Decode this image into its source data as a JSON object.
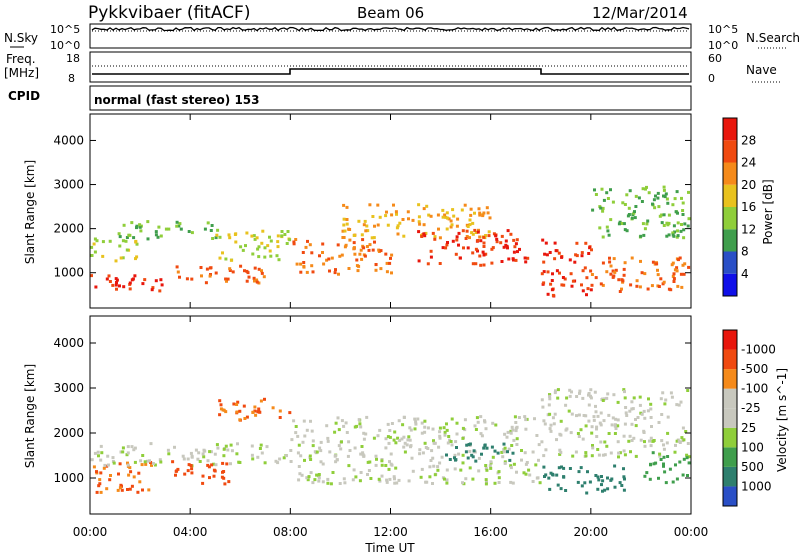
{
  "header": {
    "station": "Pykkvibaer (fitACF)",
    "beam": "Beam 06",
    "date": "12/Mar/2014"
  },
  "noise_panel": {
    "left_label": "N.Sky",
    "right_label": "N.Search",
    "left_ticks": [
      "10^5",
      "10^0"
    ],
    "right_ticks": [
      "10^5",
      "10^0"
    ]
  },
  "freq_panel": {
    "left_label_line1": "Freq.",
    "left_label_line2": "[MHz]",
    "left_ticks": [
      "18",
      "8"
    ],
    "right_label": "Nave",
    "right_ticks": [
      "60",
      "0"
    ]
  },
  "cpid": {
    "label": "CPID",
    "text": "normal (fast stereo) 153"
  },
  "x_axis": {
    "label": "Time UT",
    "ticks": [
      "00:00",
      "04:00",
      "08:00",
      "12:00",
      "16:00",
      "20:00",
      "00:00"
    ]
  },
  "colors": {
    "red": "#e8160c",
    "orange_red": "#f04a10",
    "orange": "#f58a1a",
    "yellow": "#e8c21e",
    "light_green": "#8fce3a",
    "green": "#3f9e4c",
    "teal": "#2e7f6e",
    "blue": "#2a4fc6",
    "grey": "#c8c8be"
  },
  "chart_data": [
    {
      "type": "heatmap",
      "name": "power",
      "ylabel": "Slant Range [km]",
      "xlabel": "",
      "yticks": [
        "1000",
        "2000",
        "3000",
        "4000"
      ],
      "ylim": [
        200,
        4600
      ],
      "xlim": [
        0,
        24
      ],
      "colorbar": {
        "label": "Power [dB]",
        "levels": [
          "4",
          "8",
          "12",
          "16",
          "20",
          "24",
          "28"
        ],
        "colors": [
          "#1010e8",
          "#2a4fc6",
          "#3f9e4c",
          "#8fce3a",
          "#e8c21e",
          "#f58a1a",
          "#f04a10",
          "#e8160c"
        ]
      },
      "scatter_bands": [
        {
          "t0": 0.0,
          "t1": 3.0,
          "r0": 600,
          "r1": 1000,
          "level": 28
        },
        {
          "t0": 0.0,
          "t1": 2.0,
          "r0": 1300,
          "r1": 1800,
          "level": 16
        },
        {
          "t0": 1.0,
          "t1": 5.0,
          "r0": 1800,
          "r1": 2200,
          "level": 12
        },
        {
          "t0": 3.0,
          "t1": 7.0,
          "r0": 800,
          "r1": 1200,
          "level": 24
        },
        {
          "t0": 5.0,
          "t1": 8.0,
          "r0": 1300,
          "r1": 2000,
          "level": 16
        },
        {
          "t0": 8.0,
          "t1": 12.0,
          "r0": 1000,
          "r1": 1800,
          "level": 24
        },
        {
          "t0": 10.0,
          "t1": 16.0,
          "r0": 1800,
          "r1": 2600,
          "level": 20
        },
        {
          "t0": 13.0,
          "t1": 17.5,
          "r0": 1200,
          "r1": 2000,
          "level": 28
        },
        {
          "t0": 18.0,
          "t1": 20.0,
          "r0": 500,
          "r1": 1800,
          "level": 28
        },
        {
          "t0": 20.0,
          "t1": 24.0,
          "r0": 600,
          "r1": 1400,
          "level": 24
        },
        {
          "t0": 20.0,
          "t1": 24.0,
          "r0": 1800,
          "r1": 3000,
          "level": 12
        }
      ]
    },
    {
      "type": "heatmap",
      "name": "velocity",
      "ylabel": "Slant Range [km]",
      "xlabel": "Time UT",
      "yticks": [
        "1000",
        "2000",
        "3000",
        "4000"
      ],
      "ylim": [
        200,
        4600
      ],
      "xlim": [
        0,
        24
      ],
      "colorbar": {
        "label": "Velocity [m s^-1]",
        "levels": [
          "1000",
          "500",
          "100",
          "25",
          "-25",
          "-100",
          "-500",
          "-1000"
        ],
        "colors": [
          "#2a4fc6",
          "#2e7f6e",
          "#3f9e4c",
          "#8fce3a",
          "#c8c8be",
          "#c8c8be",
          "#f58a1a",
          "#f04a10",
          "#e8160c"
        ]
      },
      "scatter_bands": [
        {
          "t0": 0.0,
          "t1": 2.5,
          "r0": 700,
          "r1": 1400,
          "level": -300
        },
        {
          "t0": 0.0,
          "t1": 8.0,
          "r0": 1300,
          "r1": 1800,
          "level": 0
        },
        {
          "t0": 3.0,
          "t1": 5.5,
          "r0": 900,
          "r1": 1400,
          "level": -600
        },
        {
          "t0": 5.0,
          "t1": 8.0,
          "r0": 2300,
          "r1": 2800,
          "level": -300
        },
        {
          "t0": 8.0,
          "t1": 18.0,
          "r0": 900,
          "r1": 2400,
          "level": 0
        },
        {
          "t0": 14.0,
          "t1": 17.0,
          "r0": 1400,
          "r1": 1800,
          "level": 600
        },
        {
          "t0": 18.0,
          "t1": 21.5,
          "r0": 700,
          "r1": 1300,
          "level": 600
        },
        {
          "t0": 18.0,
          "t1": 24.0,
          "r0": 1500,
          "r1": 3000,
          "level": 0
        },
        {
          "t0": 22.0,
          "t1": 24.0,
          "r0": 900,
          "r1": 1600,
          "level": 200
        }
      ]
    }
  ]
}
